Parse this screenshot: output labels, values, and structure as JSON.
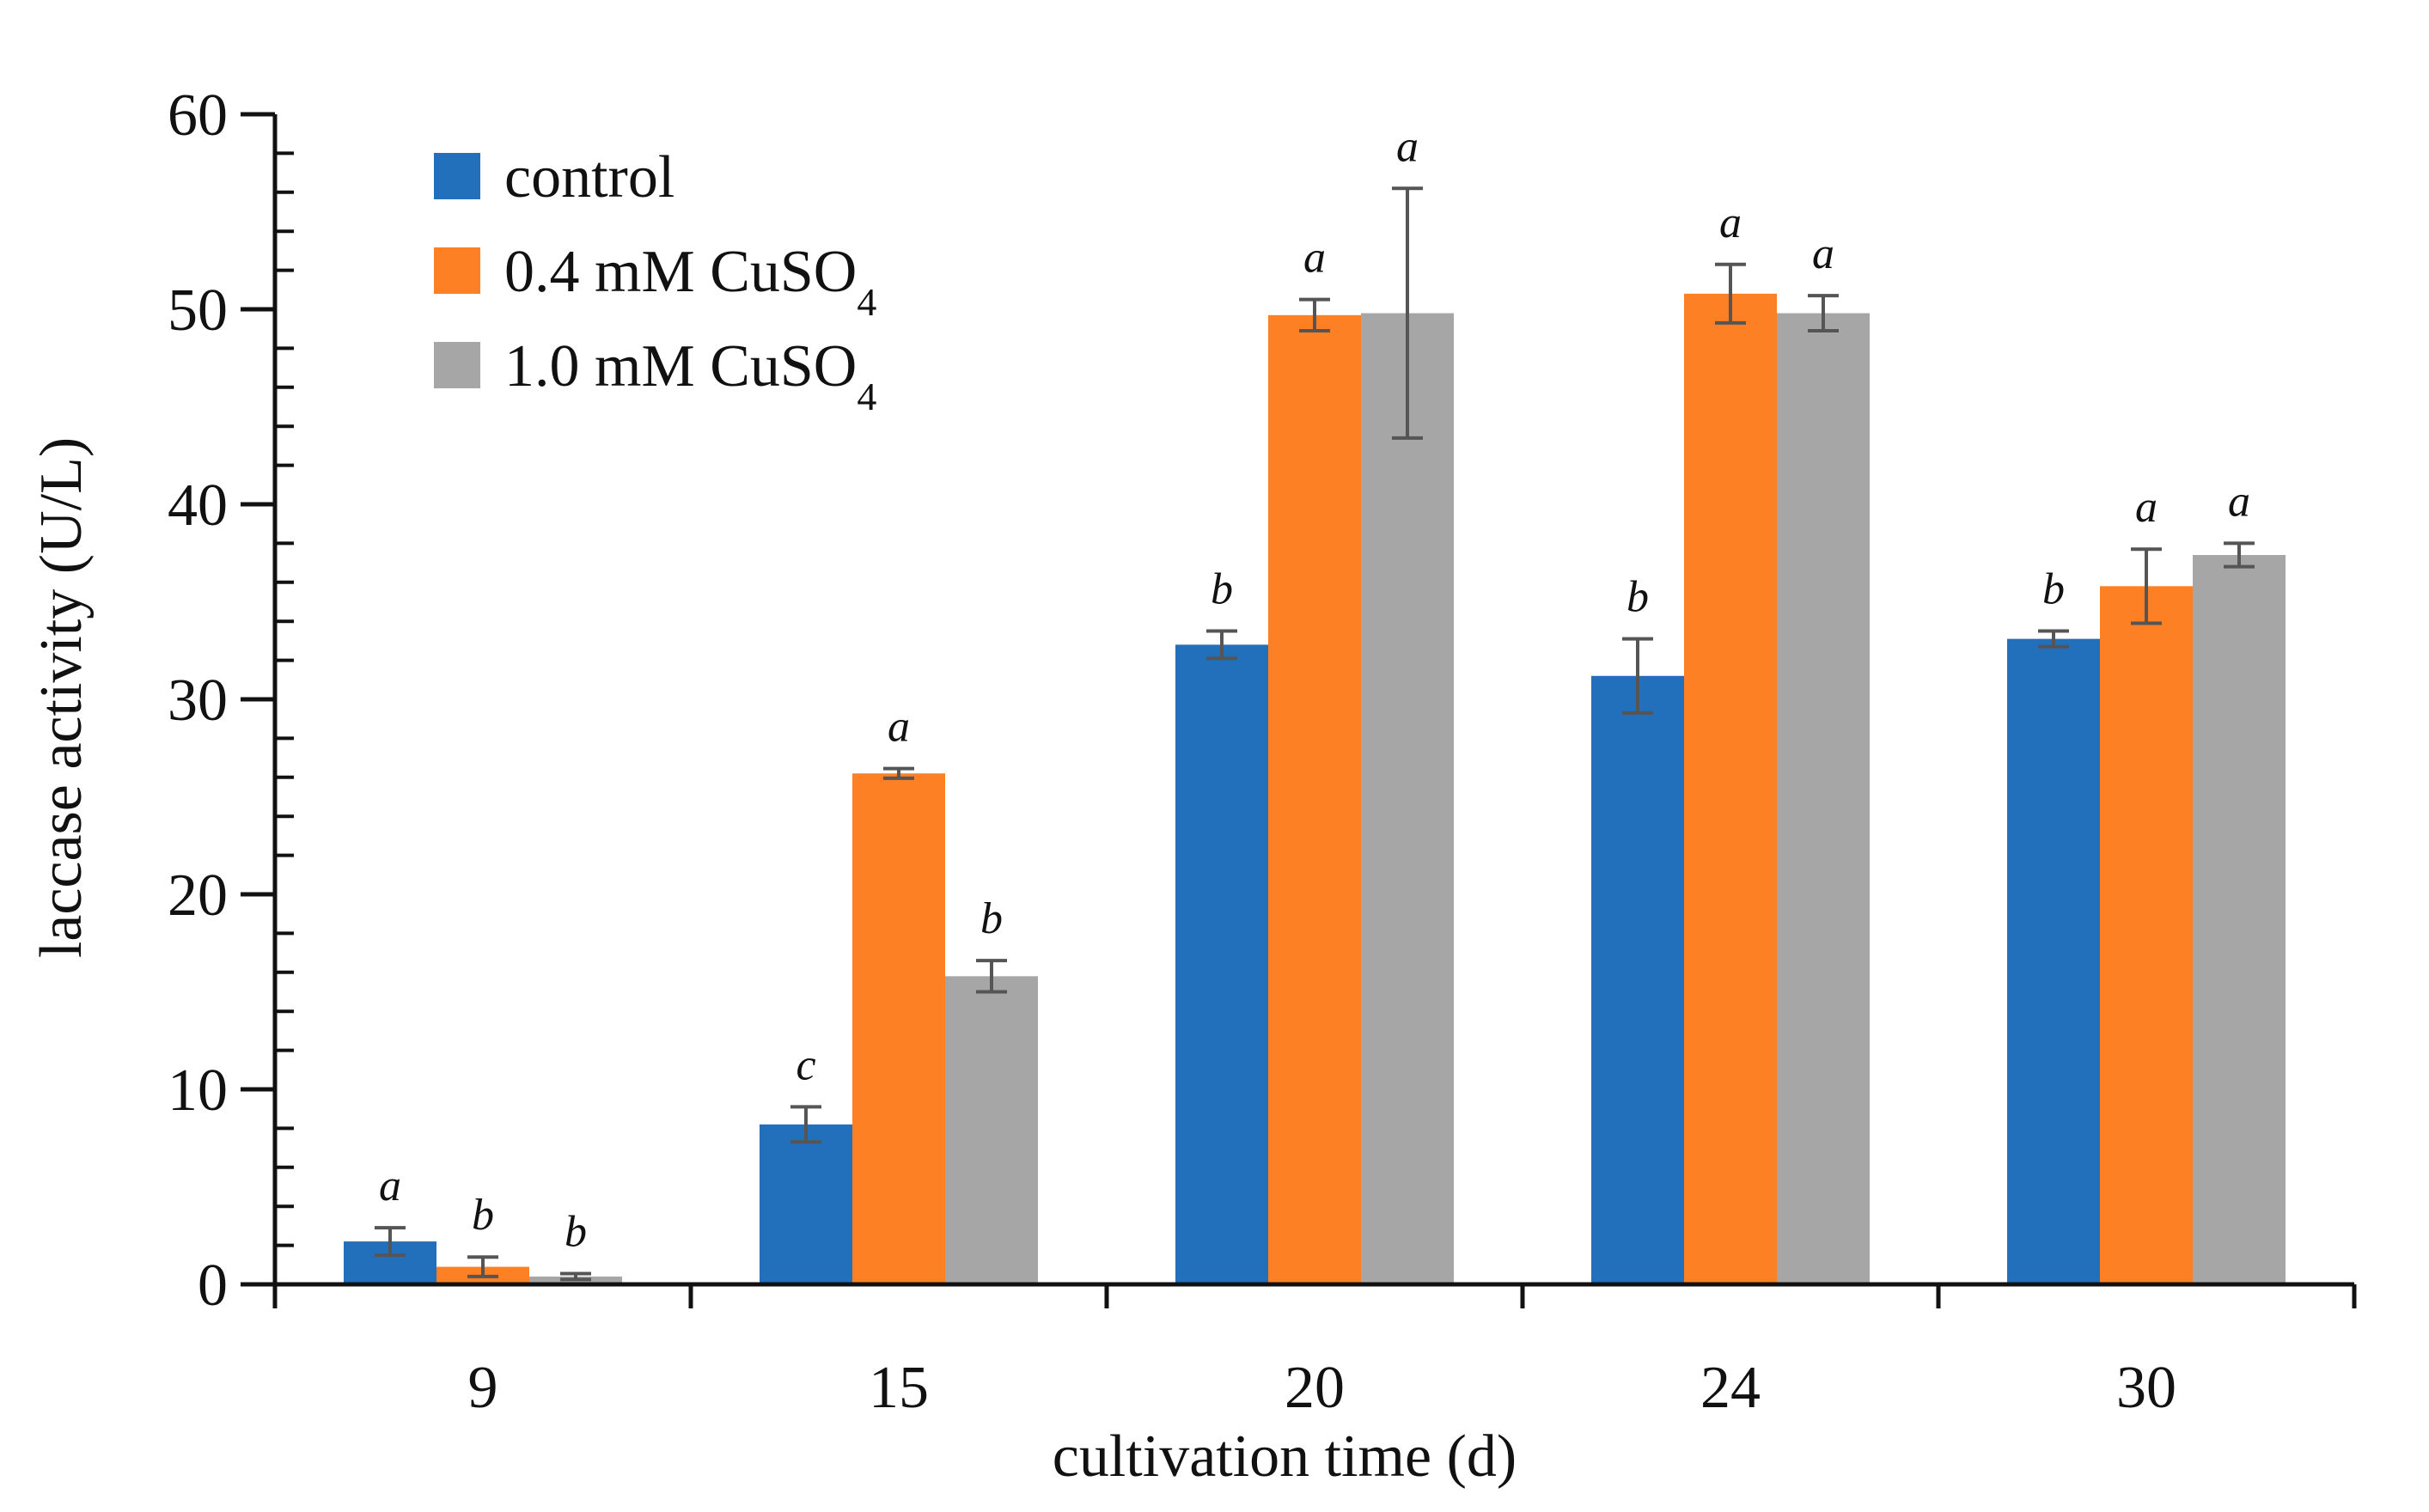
{
  "chart_data": {
    "type": "bar",
    "title": "",
    "xlabel": "cultivation time (d)",
    "ylabel": "laccase activity (U/L)",
    "ylim": [
      0,
      60
    ],
    "y_ticks": [
      0,
      10,
      20,
      30,
      40,
      50,
      60
    ],
    "y_tick_labels": [
      "0",
      "10",
      "20",
      "30",
      "40",
      "50",
      "60"
    ],
    "categories": [
      "9",
      "15",
      "20",
      "24",
      "30"
    ],
    "legend_position": "top-left",
    "grid": false,
    "series": [
      {
        "name": "control",
        "name_main": "control",
        "name_sub": "",
        "color": "#2270bb",
        "values": [
          2.2,
          8.2,
          32.8,
          31.2,
          33.1
        ],
        "errors": [
          0.7,
          0.9,
          0.7,
          1.9,
          0.4
        ],
        "significance": [
          "a",
          "c",
          "b",
          "b",
          "b"
        ]
      },
      {
        "name": "0.4 mM CuSO4",
        "name_main": "0.4 mM CuSO",
        "name_sub": "4",
        "color": "#fd8024",
        "values": [
          0.9,
          26.2,
          49.7,
          50.8,
          35.8
        ],
        "errors": [
          0.5,
          0.25,
          0.8,
          1.5,
          1.9
        ],
        "significance": [
          "b",
          "a",
          "a",
          "a",
          "a"
        ]
      },
      {
        "name": "1.0 mM CuSO4",
        "name_main": "1.0 mM CuSO",
        "name_sub": "4",
        "color": "#a6a6a6",
        "values": [
          0.4,
          15.8,
          49.8,
          49.8,
          37.4
        ],
        "errors": [
          0.15,
          0.8,
          6.4,
          0.9,
          0.6
        ],
        "significance": [
          "b",
          "b",
          "a",
          "a",
          "a"
        ]
      }
    ]
  }
}
